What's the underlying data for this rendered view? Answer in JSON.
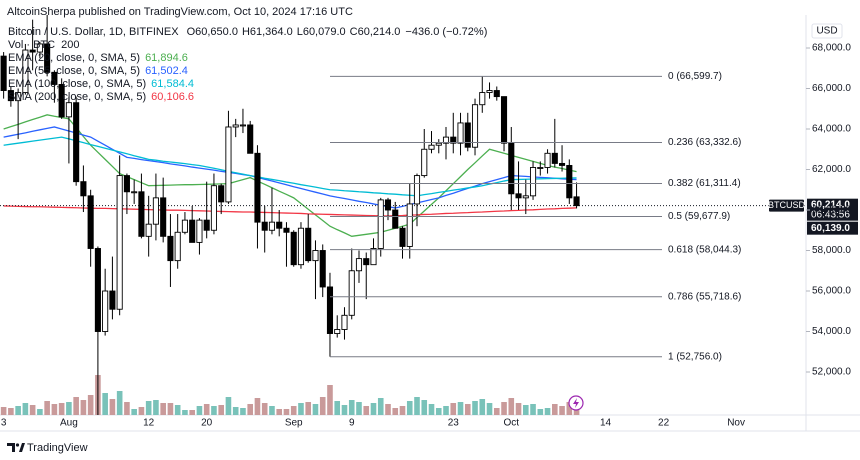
{
  "header": "AltcoinSherpa published on TradingView.com, Oct 10, 2024 17:16 UTC",
  "footer": "TradingView",
  "chart_data": {
    "type": "candlestick",
    "symbol": "Bitcoin / U.S. Dollar, 1D, BITFINEX",
    "ohlc_legend": [
      "O60,650.0",
      "H61,364.0",
      "L60,079.0",
      "C60,214.0"
    ],
    "change": "−436.0 (−0.72%)",
    "volume_legend": [
      "Vol · BTC",
      "200"
    ],
    "currency": "USD",
    "categories": [
      "3",
      null,
      null,
      null,
      null,
      null,
      null,
      null,
      null,
      "Aug",
      null,
      null,
      null,
      null,
      null,
      null,
      null,
      null,
      null,
      null,
      "12",
      null,
      null,
      null,
      null,
      null,
      null,
      null,
      "20",
      null,
      null,
      null,
      null,
      null,
      null,
      null,
      null,
      null,
      null,
      null,
      "Sep",
      null,
      null,
      null,
      null,
      null,
      null,
      null,
      "9",
      null,
      null,
      null,
      null,
      null,
      null,
      null,
      null,
      null,
      null,
      null,
      null,
      null,
      "23",
      null,
      null,
      null,
      null,
      null,
      null,
      null,
      "Oct",
      null,
      null,
      null,
      null,
      null,
      null,
      null,
      null,
      null,
      null,
      null,
      null,
      "14",
      null,
      null,
      null,
      null,
      null,
      null,
      null,
      "22",
      null,
      null,
      null,
      null,
      null,
      null,
      null,
      null,
      null,
      "Nov",
      null,
      null,
      null,
      null,
      null,
      null,
      null,
      null,
      null
    ],
    "ohlc": [
      [
        67600,
        67800,
        65500,
        65900
      ],
      [
        65900,
        66100,
        65100,
        65400
      ],
      [
        65400,
        66000,
        63500,
        65800
      ],
      [
        65800,
        68200,
        65700,
        67900
      ],
      [
        67900,
        69400,
        66900,
        67800
      ],
      [
        67800,
        68300,
        67500,
        68200
      ],
      [
        68200,
        70000,
        66600,
        66800
      ],
      [
        66800,
        66900,
        65300,
        66200
      ],
      [
        66200,
        66500,
        64500,
        64600
      ],
      [
        64600,
        65600,
        62300,
        65300
      ],
      [
        65300,
        65600,
        61200,
        61400
      ],
      [
        61400,
        62200,
        59900,
        60700
      ],
      [
        60700,
        61000,
        57200,
        58100
      ],
      [
        58100,
        58200,
        49000,
        54000
      ],
      [
        54000,
        57100,
        53800,
        56000
      ],
      [
        56000,
        57700,
        54600,
        55100
      ],
      [
        55100,
        62700,
        54800,
        61700
      ],
      [
        61700,
        61800,
        59800,
        60900
      ],
      [
        60900,
        61500,
        60300,
        60900
      ],
      [
        60900,
        61800,
        58600,
        58700
      ],
      [
        58700,
        60700,
        57700,
        59300
      ],
      [
        59300,
        61800,
        58500,
        60600
      ],
      [
        60600,
        61600,
        58400,
        58700
      ],
      [
        58700,
        59800,
        56200,
        57500
      ],
      [
        57500,
        59800,
        57100,
        58900
      ],
      [
        58900,
        59900,
        58800,
        59500
      ],
      [
        59500,
        60200,
        58400,
        58400
      ],
      [
        58400,
        59600,
        57800,
        59500
      ],
      [
        59500,
        61400,
        58600,
        59000
      ],
      [
        59000,
        61800,
        58800,
        61200
      ],
      [
        61200,
        61300,
        59800,
        60400
      ],
      [
        60400,
        64900,
        60300,
        64100
      ],
      [
        64100,
        64500,
        63600,
        64200
      ],
      [
        64200,
        65000,
        63800,
        64200
      ],
      [
        64200,
        64400,
        62800,
        62800
      ],
      [
        62800,
        63200,
        58100,
        59400
      ],
      [
        59400,
        60200,
        57900,
        59000
      ],
      [
        59000,
        61100,
        58800,
        59400
      ],
      [
        59400,
        60000,
        58700,
        59100
      ],
      [
        59100,
        59400,
        57200,
        58900
      ],
      [
        58900,
        59000,
        57200,
        57300
      ],
      [
        57300,
        59400,
        57100,
        59100
      ],
      [
        59100,
        59800,
        57400,
        57500
      ],
      [
        57500,
        58500,
        55600,
        58000
      ],
      [
        58000,
        58300,
        55700,
        56200
      ],
      [
        56200,
        56900,
        52756,
        53900
      ],
      [
        53900,
        54800,
        53700,
        54100
      ],
      [
        54100,
        55200,
        53600,
        54800
      ],
      [
        54800,
        58100,
        54600,
        57000
      ],
      [
        57000,
        58000,
        56400,
        57600
      ],
      [
        57600,
        57900,
        55600,
        57300
      ],
      [
        57300,
        58600,
        57300,
        58100
      ],
      [
        58100,
        60600,
        57700,
        60500
      ],
      [
        60500,
        60600,
        59500,
        60000
      ],
      [
        60000,
        60400,
        59500,
        59100
      ],
      [
        59100,
        59200,
        57600,
        58200
      ],
      [
        58200,
        61300,
        57600,
        60300
      ],
      [
        60300,
        61800,
        59200,
        61700
      ],
      [
        61700,
        64000,
        61600,
        63000
      ],
      [
        63000,
        63900,
        62800,
        63200
      ],
      [
        63200,
        63500,
        62800,
        63300
      ],
      [
        63300,
        64100,
        62500,
        63600
      ],
      [
        63600,
        64800,
        62800,
        63300
      ],
      [
        63300,
        64800,
        62700,
        64300
      ],
      [
        64300,
        64800,
        62900,
        63100
      ],
      [
        63100,
        65500,
        62700,
        65200
      ],
      [
        65200,
        66599.7,
        64800,
        65800
      ],
      [
        65800,
        66300,
        65500,
        65900
      ],
      [
        65900,
        66100,
        65400,
        65600
      ],
      [
        65600,
        65600,
        62900,
        63300
      ],
      [
        63300,
        64100,
        60000,
        60800
      ],
      [
        60800,
        62400,
        60000,
        60600
      ],
      [
        60600,
        61500,
        59800,
        60700
      ],
      [
        60700,
        62400,
        60500,
        62100
      ],
      [
        62100,
        62400,
        61700,
        62100
      ],
      [
        62100,
        63000,
        61800,
        62800
      ],
      [
        62800,
        64500,
        62100,
        62300
      ],
      [
        62300,
        63200,
        61900,
        62200
      ],
      [
        62200,
        62500,
        60300,
        60600
      ],
      [
        60650,
        61364,
        60079,
        60214
      ],
      null,
      null,
      null,
      null,
      null,
      null,
      null,
      null,
      null,
      null,
      null,
      null,
      null,
      null,
      null,
      null,
      null,
      null,
      null,
      null,
      null,
      null,
      null,
      null,
      null,
      null,
      null,
      null,
      null,
      null,
      null
    ],
    "up_color": "#ffffff",
    "down_color": "#000000",
    "volume": [
      8,
      7,
      9,
      12,
      10,
      6,
      14,
      11,
      12,
      13,
      18,
      15,
      20,
      40,
      22,
      16,
      24,
      13,
      6,
      8,
      14,
      15,
      12,
      12,
      10,
      5,
      5,
      9,
      11,
      9,
      10,
      18,
      8,
      7,
      11,
      17,
      12,
      9,
      6,
      6,
      9,
      12,
      13,
      11,
      18,
      30,
      14,
      10,
      15,
      13,
      9,
      12,
      17,
      11,
      7,
      9,
      14,
      18,
      15,
      11,
      7,
      9,
      12,
      13,
      11,
      14,
      16,
      12,
      7,
      13,
      17,
      12,
      10,
      11,
      6,
      7,
      11,
      9,
      13,
      8,
      null,
      null,
      null,
      null,
      null,
      null,
      null,
      null,
      null,
      null,
      null,
      null,
      null,
      null,
      null,
      null,
      null,
      null,
      null,
      null,
      null,
      null,
      null,
      null,
      null,
      null,
      null,
      null,
      null,
      null,
      null
    ],
    "volume_lim": [
      0,
      100
    ],
    "volume_up_color": "#79c2b9",
    "volume_down_color": "#c99a9a",
    "series": [
      {
        "name": "EMA (20, close, 0, SMA, 5)",
        "color": "#4caf50",
        "last_label": "61,894.6",
        "values": [
          64000,
          64120,
          64230,
          64350,
          64470,
          64580,
          64700,
          64630,
          64570,
          64500,
          64070,
          63630,
          63200,
          62850,
          62500,
          62150,
          61800,
          61650,
          61500,
          61350,
          61200,
          61210,
          61220,
          61230,
          61240,
          61250,
          61250,
          61260,
          61270,
          61280,
          61290,
          61300,
          61400,
          61500,
          61600,
          61430,
          61270,
          61100,
          60930,
          60770,
          60600,
          60320,
          60040,
          59760,
          59480,
          59200,
          59030,
          58870,
          58700,
          58750,
          58800,
          58850,
          58900,
          59000,
          59100,
          59200,
          59300,
          59630,
          59950,
          60280,
          60600,
          60950,
          61300,
          61650,
          62000,
          62330,
          62670,
          63000,
          62900,
          62800,
          62700,
          62600,
          62500,
          62400,
          62300,
          62200,
          62120,
          62050,
          61970,
          61894.6,
          null,
          null,
          null,
          null,
          null,
          null,
          null,
          null,
          null,
          null,
          null,
          null,
          null,
          null,
          null,
          null,
          null,
          null,
          null,
          null,
          null,
          null,
          null,
          null,
          null,
          null,
          null,
          null,
          null,
          null,
          null
        ]
      },
      {
        "name": "EMA (55, close, 0, SMA, 5)",
        "color": "#2962ff",
        "last_label": "61,502.4",
        "values": [
          63600,
          63670,
          63740,
          63810,
          63890,
          63960,
          64030,
          64100,
          64000,
          63900,
          63800,
          63700,
          63600,
          63400,
          63200,
          63000,
          62800,
          62600,
          62550,
          62490,
          62440,
          62390,
          62340,
          62280,
          62230,
          62180,
          62120,
          62070,
          62020,
          61970,
          61910,
          61860,
          61810,
          61750,
          61700,
          61610,
          61520,
          61430,
          61340,
          61250,
          61150,
          61060,
          60970,
          60880,
          60790,
          60700,
          60630,
          60570,
          60500,
          60430,
          60370,
          60300,
          60230,
          60170,
          60100,
          60180,
          60270,
          60350,
          60430,
          60520,
          60600,
          60720,
          60830,
          60950,
          61070,
          61180,
          61300,
          61400,
          61500,
          61600,
          61700,
          61680,
          61660,
          61630,
          61610,
          61590,
          61570,
          61540,
          61520,
          61502.4,
          null,
          null,
          null,
          null,
          null,
          null,
          null,
          null,
          null,
          null,
          null,
          null,
          null,
          null,
          null,
          null,
          null,
          null,
          null,
          null,
          null,
          null,
          null,
          null,
          null,
          null,
          null,
          null,
          null,
          null,
          null
        ]
      },
      {
        "name": "EMA (100, close, 0, SMA, 5)",
        "color": "#00bcd4",
        "last_label": "61,584.4",
        "values": [
          63200,
          63250,
          63300,
          63350,
          63400,
          63450,
          63500,
          63550,
          63600,
          63510,
          63420,
          63330,
          63230,
          63140,
          63050,
          62960,
          62870,
          62780,
          62680,
          62590,
          62500,
          62460,
          62410,
          62370,
          62330,
          62290,
          62240,
          62200,
          62130,
          62060,
          61990,
          61910,
          61840,
          61770,
          61700,
          61640,
          61570,
          61510,
          61450,
          61380,
          61320,
          61250,
          61190,
          61130,
          61060,
          61000,
          60980,
          60950,
          60930,
          60900,
          60880,
          60850,
          60830,
          60800,
          60780,
          60750,
          60730,
          60700,
          60760,
          60810,
          60870,
          60920,
          60980,
          61030,
          61090,
          61140,
          61200,
          61280,
          61350,
          61430,
          61500,
          61510,
          61520,
          61530,
          61540,
          61550,
          61560,
          61570,
          61580,
          61584.4,
          null,
          null,
          null,
          null,
          null,
          null,
          null,
          null,
          null,
          null,
          null,
          null,
          null,
          null,
          null,
          null,
          null,
          null,
          null,
          null,
          null,
          null,
          null,
          null,
          null,
          null,
          null,
          null,
          null,
          null,
          null
        ]
      },
      {
        "name": "SMA (200, close, 0, SMA, 5)",
        "color": "#f23645",
        "last_label": "60,106.6",
        "values": [
          60200,
          60190,
          60180,
          60170,
          60160,
          60160,
          60150,
          60140,
          60130,
          60120,
          60110,
          60100,
          60090,
          60080,
          60080,
          60070,
          60060,
          60050,
          60040,
          60030,
          60020,
          60010,
          60000,
          59990,
          59990,
          59980,
          59970,
          59960,
          59950,
          59940,
          59930,
          59920,
          59910,
          59900,
          59900,
          59890,
          59880,
          59870,
          59860,
          59850,
          59840,
          59830,
          59810,
          59800,
          59790,
          59780,
          59770,
          59760,
          59750,
          59740,
          59730,
          59720,
          59710,
          59700,
          59720,
          59730,
          59750,
          59760,
          59780,
          59790,
          59810,
          59830,
          59840,
          59860,
          59870,
          59890,
          59900,
          59920,
          59940,
          59950,
          59970,
          59980,
          60000,
          60010,
          60030,
          60050,
          60060,
          60080,
          60090,
          60106.6,
          null,
          null,
          null,
          null,
          null,
          null,
          null,
          null,
          null,
          null,
          null,
          null,
          null,
          null,
          null,
          null,
          null,
          null,
          null,
          null,
          null,
          null,
          null,
          null,
          null,
          null,
          null,
          null,
          null,
          null,
          null
        ]
      }
    ],
    "ylim": [
      49877,
      69630
    ],
    "yticks": [
      {
        "value": 52000,
        "label": "52,000.0"
      },
      {
        "value": 54000,
        "label": "54,000.0"
      },
      {
        "value": 56000,
        "label": "56,000.0"
      },
      {
        "value": 58000,
        "label": "58,000.0"
      },
      {
        "value": 60000,
        "label": "60,000.0"
      },
      {
        "value": 62000,
        "label": "62,000.0"
      },
      {
        "value": 64000,
        "label": "64,000.0"
      },
      {
        "value": 66000,
        "label": "66,000.0"
      },
      {
        "value": 68000,
        "label": "68,000.0"
      }
    ],
    "grid": false,
    "fib": {
      "color": "#787b86",
      "levels": [
        {
          "value": 66599.7,
          "label": "0 (66,599.7)"
        },
        {
          "value": 63332.6,
          "label": "0.236 (63,332.6)"
        },
        {
          "value": 61311.4,
          "label": "0.382 (61,311.4)"
        },
        {
          "value": 59677.9,
          "label": "0.5 (59,677.9)"
        },
        {
          "value": 58044.3,
          "label": "0.618 (58,044.3)"
        },
        {
          "value": 55718.6,
          "label": "0.786 (55,718.6)"
        },
        {
          "value": 52756.0,
          "label": "1 (52,756.0)"
        }
      ]
    },
    "last_price": {
      "value": 60214,
      "label": "60,214.0",
      "symbol": "BTCUSD",
      "countdown": "06:43:56"
    },
    "price_marker": {
      "value": 60139,
      "label": "60,139.0"
    }
  }
}
